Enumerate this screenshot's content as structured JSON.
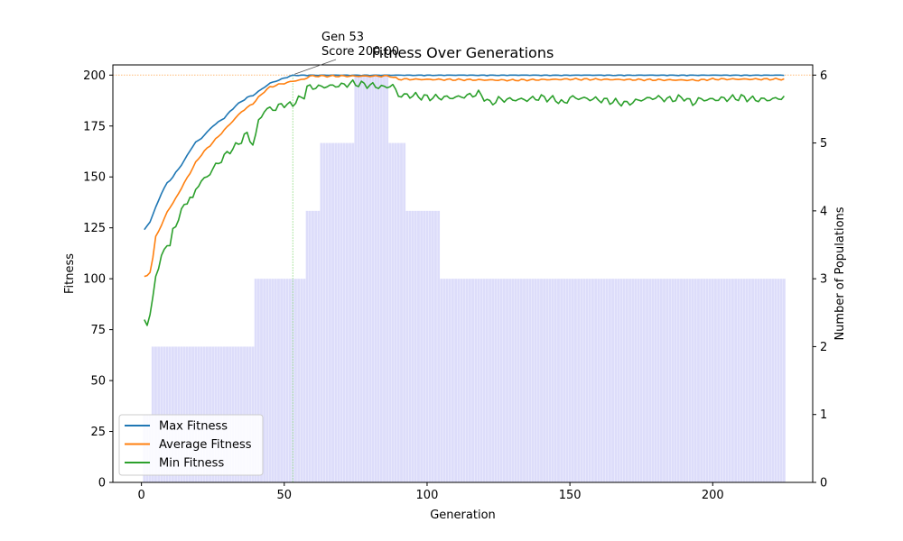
{
  "chart_data": {
    "type": "line",
    "title": "Fitness Over Generations",
    "xlabel": "Generation",
    "ylabel": "Fitness",
    "y2label": "Number of Populations",
    "xlim": [
      -10,
      235
    ],
    "ylim": [
      0,
      205
    ],
    "y2lim": [
      0,
      6.15
    ],
    "x_ticks": [
      0,
      50,
      100,
      150,
      200
    ],
    "y_ticks": [
      0,
      25,
      50,
      75,
      100,
      125,
      150,
      175,
      200
    ],
    "y2_ticks": [
      0,
      1,
      2,
      3,
      4,
      5,
      6
    ],
    "grid": false,
    "legend_position": "lower-left",
    "reference_line": {
      "y": 200,
      "color": "#ffbb78",
      "style": "dotted"
    },
    "annotation": {
      "generation": 53,
      "score": 200.0,
      "line1": "Gen 53",
      "line2": "Score 200.00"
    },
    "populations": {
      "color": "#c7c7f7",
      "note_segments": [
        {
          "from": 1,
          "to": 3,
          "count": 1
        },
        {
          "from": 4,
          "to": 39,
          "count": 2
        },
        {
          "from": 40,
          "to": 57,
          "count": 3
        },
        {
          "from": 58,
          "to": 62,
          "count": 4
        },
        {
          "from": 63,
          "to": 74,
          "count": 5
        },
        {
          "from": 75,
          "to": 86,
          "count": 6
        },
        {
          "from": 87,
          "to": 92,
          "count": 5
        },
        {
          "from": 93,
          "to": 104,
          "count": 4
        },
        {
          "from": 105,
          "to": 225,
          "count": 3
        }
      ]
    },
    "series": [
      {
        "name": "Max Fitness",
        "color": "#1f77b4",
        "keypoints": [
          [
            1,
            124
          ],
          [
            3,
            128
          ],
          [
            5,
            135
          ],
          [
            7,
            142
          ],
          [
            9,
            147
          ],
          [
            11,
            150
          ],
          [
            13,
            154
          ],
          [
            15,
            158
          ],
          [
            17,
            163
          ],
          [
            19,
            167
          ],
          [
            21,
            169
          ],
          [
            23,
            172
          ],
          [
            25,
            175
          ],
          [
            27,
            177
          ],
          [
            29,
            179
          ],
          [
            31,
            182
          ],
          [
            33,
            185
          ],
          [
            35,
            187
          ],
          [
            37,
            189
          ],
          [
            39,
            190
          ],
          [
            41,
            192
          ],
          [
            43,
            194
          ],
          [
            45,
            196
          ],
          [
            47,
            197
          ],
          [
            49,
            198
          ],
          [
            51,
            199
          ],
          [
            53,
            200
          ],
          [
            225,
            200
          ]
        ]
      },
      {
        "name": "Average Fitness",
        "color": "#ff7f0e",
        "keypoints": [
          [
            1,
            101
          ],
          [
            3,
            103
          ],
          [
            4,
            110
          ],
          [
            5,
            121
          ],
          [
            7,
            126
          ],
          [
            9,
            133
          ],
          [
            11,
            137
          ],
          [
            13,
            142
          ],
          [
            15,
            147
          ],
          [
            17,
            152
          ],
          [
            19,
            157
          ],
          [
            21,
            161
          ],
          [
            23,
            164
          ],
          [
            25,
            167
          ],
          [
            27,
            170
          ],
          [
            29,
            173
          ],
          [
            31,
            176
          ],
          [
            33,
            179
          ],
          [
            35,
            182
          ],
          [
            37,
            184
          ],
          [
            39,
            186
          ],
          [
            41,
            189
          ],
          [
            43,
            192
          ],
          [
            45,
            194
          ],
          [
            47,
            195
          ],
          [
            50,
            196
          ],
          [
            53,
            197
          ],
          [
            57,
            198
          ],
          [
            59,
            199.5
          ],
          [
            87,
            199.5
          ],
          [
            90,
            198
          ],
          [
            130,
            197.5
          ],
          [
            150,
            198
          ],
          [
            195,
            197.5
          ],
          [
            200,
            198
          ],
          [
            225,
            198
          ]
        ]
      },
      {
        "name": "Min Fitness",
        "color": "#2ca02c",
        "keypoints": [
          [
            1,
            80
          ],
          [
            2,
            78
          ],
          [
            3,
            82
          ],
          [
            4,
            90
          ],
          [
            5,
            102
          ],
          [
            7,
            110
          ],
          [
            9,
            118
          ],
          [
            10,
            116
          ],
          [
            11,
            123
          ],
          [
            13,
            130
          ],
          [
            15,
            136
          ],
          [
            17,
            140
          ],
          [
            18,
            139
          ],
          [
            19,
            144
          ],
          [
            21,
            148
          ],
          [
            23,
            150
          ],
          [
            25,
            154
          ],
          [
            27,
            157
          ],
          [
            29,
            160
          ],
          [
            31,
            163
          ],
          [
            33,
            165
          ],
          [
            35,
            168
          ],
          [
            36,
            170
          ],
          [
            37,
            171
          ],
          [
            39,
            166
          ],
          [
            40,
            170
          ],
          [
            41,
            178
          ],
          [
            43,
            182
          ],
          [
            45,
            184
          ],
          [
            47,
            183
          ],
          [
            49,
            186
          ],
          [
            51,
            185
          ],
          [
            53,
            186
          ],
          [
            55,
            188
          ],
          [
            57,
            190
          ],
          [
            58,
            194
          ],
          [
            60,
            194
          ],
          [
            70,
            195
          ],
          [
            74,
            196
          ],
          [
            80,
            195
          ],
          [
            85,
            194
          ],
          [
            88,
            195
          ],
          [
            90,
            190
          ],
          [
            95,
            190
          ],
          [
            100,
            189
          ],
          [
            110,
            189
          ],
          [
            115,
            190
          ],
          [
            118,
            191
          ],
          [
            120,
            189
          ],
          [
            122,
            186
          ],
          [
            125,
            188
          ],
          [
            130,
            188
          ],
          [
            135,
            188
          ],
          [
            140,
            189
          ],
          [
            145,
            188
          ],
          [
            148,
            186
          ],
          [
            150,
            189
          ],
          [
            160,
            188
          ],
          [
            165,
            187
          ],
          [
            170,
            186
          ],
          [
            175,
            188
          ],
          [
            180,
            189
          ],
          [
            185,
            188
          ],
          [
            190,
            189
          ],
          [
            193,
            186
          ],
          [
            195,
            188
          ],
          [
            200,
            188
          ],
          [
            210,
            189
          ],
          [
            215,
            188
          ],
          [
            220,
            188
          ],
          [
            225,
            189
          ]
        ]
      }
    ]
  }
}
